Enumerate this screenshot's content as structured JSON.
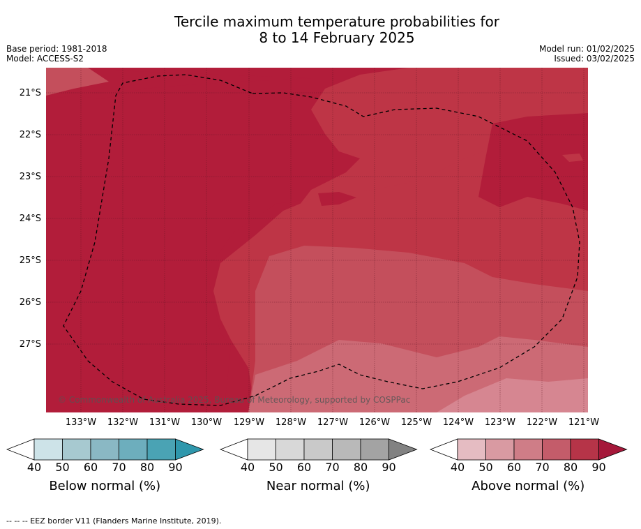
{
  "title_line1": "Tercile maximum temperature probabilities for",
  "title_line2": "8 to 14 February 2025",
  "base_period": "Base period: 1981-2018",
  "model": "Model: ACCESS-S2",
  "model_run": "Model run: 01/02/2025",
  "issued": "Issued: 03/02/2025",
  "copyright": "© Commonwealth of Australia 2025, Bureau of Meteorology, supported by COSPPac",
  "lat_labels": [
    "21°S",
    "22°S",
    "23°S",
    "24°S",
    "25°S",
    "26°S",
    "27°S"
  ],
  "lon_labels": [
    "133°W",
    "132°W",
    "131°W",
    "130°W",
    "129°W",
    "128°W",
    "127°W",
    "126°W",
    "125°W",
    "124°W",
    "123°W",
    "122°W",
    "121°W"
  ],
  "colorbars": [
    {
      "label": "Below normal (%)",
      "ticks": [
        "40",
        "50",
        "60",
        "70",
        "80",
        "90"
      ],
      "colors": [
        "#ffffff",
        "#cde3e8",
        "#a7c9d0",
        "#8ab8c4",
        "#6daebd",
        "#4aa3b4",
        "#2f97ac"
      ]
    },
    {
      "label": "Near normal (%)",
      "ticks": [
        "40",
        "50",
        "60",
        "70",
        "80",
        "90"
      ],
      "colors": [
        "#ffffff",
        "#e6e6e6",
        "#d8d8d8",
        "#c9c9c9",
        "#b9b9b9",
        "#a3a3a3",
        "#828282"
      ]
    },
    {
      "label": "Above normal (%)",
      "ticks": [
        "40",
        "50",
        "60",
        "70",
        "80",
        "90"
      ],
      "colors": [
        "#ffffff",
        "#e5bcc2",
        "#d99aa2",
        "#cf7d87",
        "#c45c6a",
        "#b63448",
        "#a5183a"
      ]
    }
  ],
  "footer": "--  --  -- EEZ border V11 (Flanders Marine Institute, 2019)."
}
